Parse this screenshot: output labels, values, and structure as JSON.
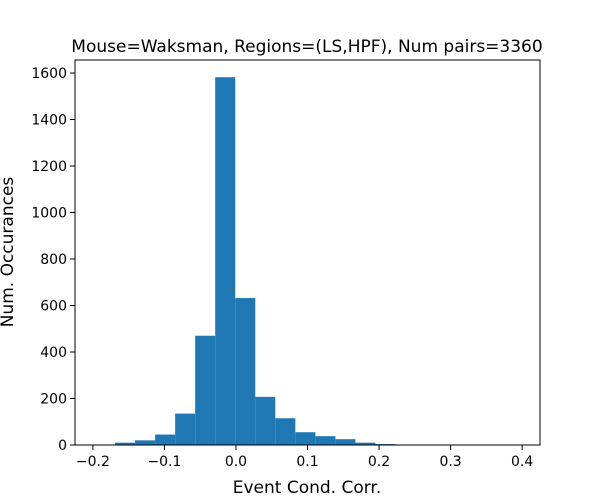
{
  "chart_data": {
    "type": "bar",
    "title": "Mouse=Waksman, Regions=(LS,HPF), Num pairs=3360",
    "xlabel": "Event Cond. Corr.",
    "ylabel": "Num. Occurances",
    "xlim": [
      -0.225,
      0.425
    ],
    "ylim": [
      0,
      1600
    ],
    "xticks": [
      -0.2,
      -0.1,
      0.0,
      0.1,
      0.2,
      0.3,
      0.4
    ],
    "xtick_labels": [
      "−0.2",
      "−0.1",
      "0.0",
      "0.1",
      "0.2",
      "0.3",
      "0.4"
    ],
    "yticks": [
      0,
      200,
      400,
      600,
      800,
      1000,
      1200,
      1400,
      1600
    ],
    "ytick_labels": [
      "0",
      "200",
      "400",
      "600",
      "800",
      "1000",
      "1200",
      "1400",
      "1600"
    ],
    "bar_color": "#1f77b4",
    "bins": [
      {
        "x0": -0.197,
        "x1": -0.169,
        "value": 2
      },
      {
        "x0": -0.169,
        "x1": -0.141,
        "value": 10
      },
      {
        "x0": -0.141,
        "x1": -0.113,
        "value": 20
      },
      {
        "x0": -0.113,
        "x1": -0.085,
        "value": 45
      },
      {
        "x0": -0.085,
        "x1": -0.057,
        "value": 135
      },
      {
        "x0": -0.057,
        "x1": -0.029,
        "value": 470
      },
      {
        "x0": -0.029,
        "x1": -0.001,
        "value": 1582
      },
      {
        "x0": -0.001,
        "x1": 0.027,
        "value": 632
      },
      {
        "x0": 0.027,
        "x1": 0.055,
        "value": 207
      },
      {
        "x0": 0.055,
        "x1": 0.083,
        "value": 115
      },
      {
        "x0": 0.083,
        "x1": 0.111,
        "value": 55
      },
      {
        "x0": 0.111,
        "x1": 0.139,
        "value": 38
      },
      {
        "x0": 0.139,
        "x1": 0.167,
        "value": 25
      },
      {
        "x0": 0.167,
        "x1": 0.195,
        "value": 10
      },
      {
        "x0": 0.195,
        "x1": 0.223,
        "value": 4
      },
      {
        "x0": 0.223,
        "x1": 0.251,
        "value": 1
      }
    ]
  }
}
